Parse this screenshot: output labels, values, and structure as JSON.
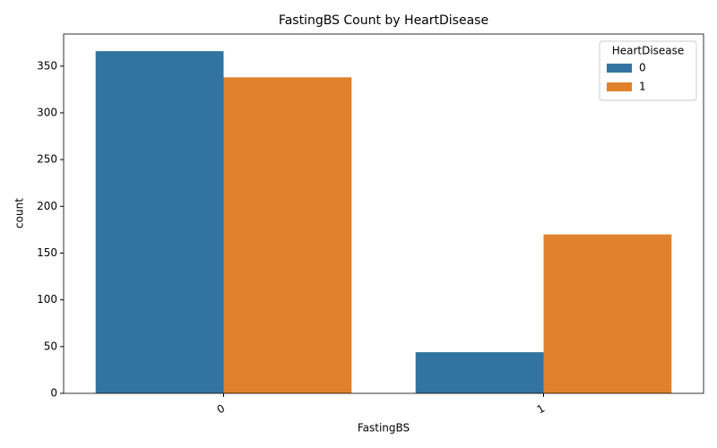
{
  "chart_data": {
    "type": "grouped-bar",
    "title": "FastingBS Count by HeartDisease",
    "x_label": "FastingBS",
    "y_label": "count",
    "categories": [
      "0",
      "1"
    ],
    "legend_title": "HeartDisease",
    "legend_position": "upper-right",
    "series": [
      {
        "name": "0",
        "color": "#3274a1",
        "values": [
          366,
          44
        ]
      },
      {
        "name": "1",
        "color": "#e1812c",
        "values": [
          338,
          170
        ]
      }
    ],
    "ylim": [
      0,
      384.3
    ],
    "yticks": [
      0,
      50,
      100,
      150,
      200,
      250,
      300,
      350
    ]
  }
}
